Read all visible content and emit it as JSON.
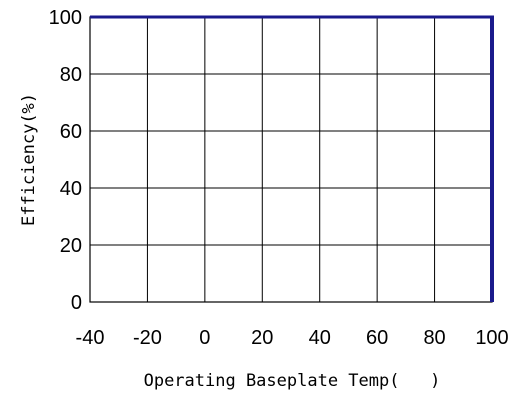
{
  "chart_data": {
    "type": "line",
    "title": "",
    "xlabel": "Operating Baseplate Temp(   )",
    "ylabel": "Efficiency(%)",
    "xlim": [
      -40,
      100
    ],
    "ylim": [
      0,
      100
    ],
    "x_ticks": [
      -40,
      -20,
      0,
      20,
      40,
      60,
      80,
      100
    ],
    "y_ticks": [
      0,
      20,
      40,
      60,
      80,
      100
    ],
    "grid": true,
    "legend": "none",
    "series": [],
    "colors": {
      "frame": "#000000",
      "grid": "#000000",
      "accent_border": "#1a1a8c"
    }
  }
}
